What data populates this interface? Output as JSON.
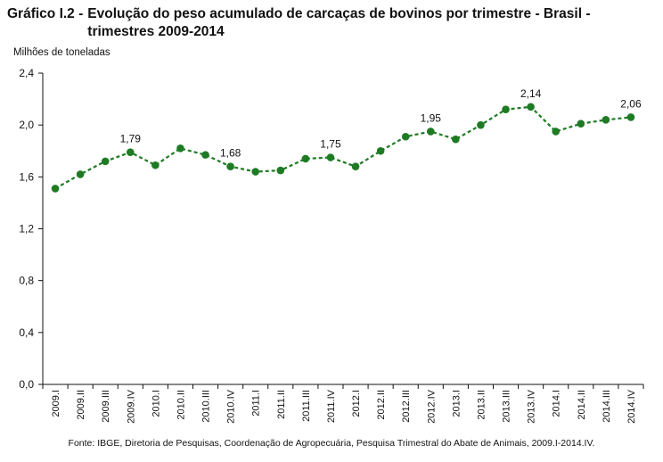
{
  "title": {
    "label": "Gráfico I.2 -",
    "text": "Evolução do peso acumulado de carcaças de bovinos por trimestre - Brasil - trimestres 2009-2014"
  },
  "unit_label": "Milhões de toneladas",
  "source": "Fonte: IBGE, Diretoria de Pesquisas, Coordenação de Agropecuária, Pesquisa Trimestral do Abate de Animais, 2009.I-2014.IV.",
  "chart_data": {
    "type": "line",
    "title": "Evolução do peso acumulado de carcaças de bovinos por trimestre - Brasil - trimestres 2009-2014",
    "ylabel": "Milhões de toneladas",
    "xlabel": "",
    "ylim": [
      0,
      2.4
    ],
    "yticks": [
      "0,0",
      "0,4",
      "0,8",
      "1,2",
      "1,6",
      "2,0",
      "2,4"
    ],
    "grid": false,
    "legend": "none",
    "line_style": "dashed with circular markers",
    "color": "#1e7b24",
    "categories": [
      "2009.I",
      "2009.II",
      "2009.III",
      "2009.IV",
      "2010.I",
      "2010.II",
      "2010.III",
      "2010.IV",
      "2011.I",
      "2011.II",
      "2011.III",
      "2011.IV",
      "2012.I",
      "2012.II",
      "2012.III",
      "2012.IV",
      "2013.I",
      "2013.II",
      "2013.III",
      "2013.IV",
      "2014.I",
      "2014.II",
      "2014.III",
      "2014.IV"
    ],
    "values": [
      1.51,
      1.62,
      1.72,
      1.79,
      1.69,
      1.82,
      1.77,
      1.68,
      1.64,
      1.65,
      1.74,
      1.75,
      1.68,
      1.8,
      1.91,
      1.95,
      1.89,
      2.0,
      2.12,
      2.14,
      1.95,
      2.01,
      2.04,
      2.06
    ],
    "data_labels": [
      {
        "index": 3,
        "text": "1,79"
      },
      {
        "index": 7,
        "text": "1,68"
      },
      {
        "index": 11,
        "text": "1,75"
      },
      {
        "index": 15,
        "text": "1,95"
      },
      {
        "index": 19,
        "text": "2,14"
      },
      {
        "index": 23,
        "text": "2,06"
      }
    ]
  }
}
